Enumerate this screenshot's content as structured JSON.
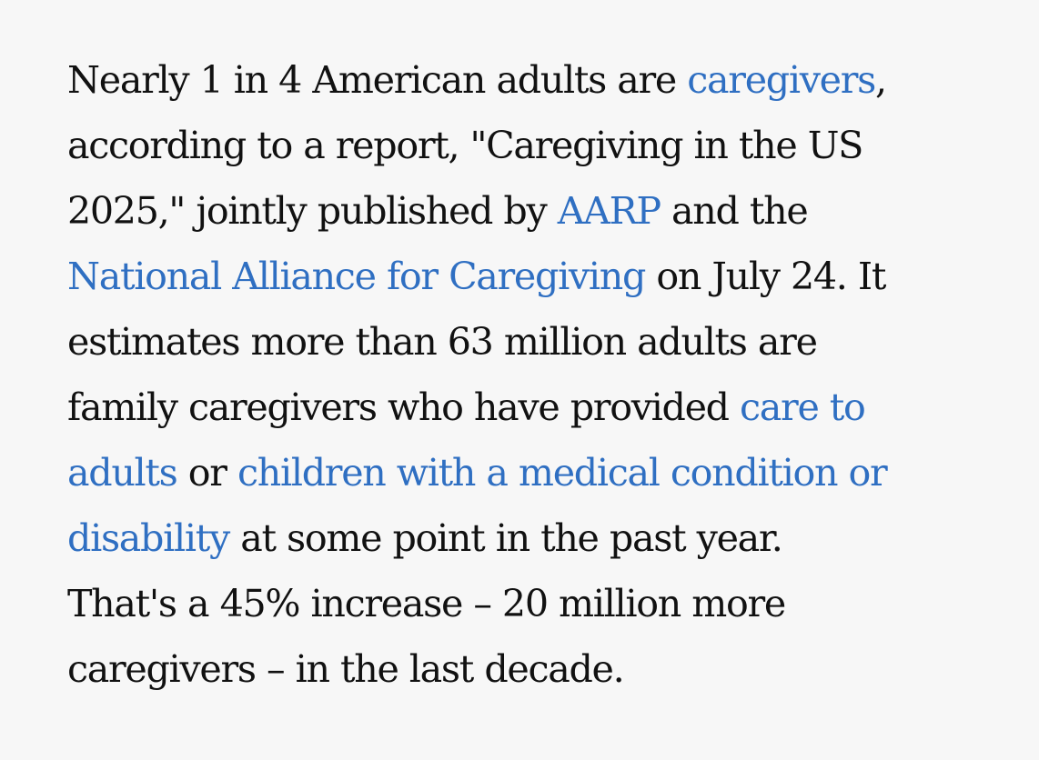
{
  "paragraph": {
    "line1": {
      "text_before": "Nearly 1 in 4 American adults are ",
      "link_caregivers": "caregivers",
      "text_after": ","
    },
    "line2": {
      "text": "according to a report, \"Caregiving in the US"
    },
    "line3": {
      "text_before": "2025,\" jointly published by ",
      "link_aarp": "AARP",
      "text_after": " and the"
    },
    "line4": {
      "link_nac": "National Alliance for Caregiving",
      "text_after": " on July 24. It"
    },
    "line5": {
      "text": "estimates more than 63 million adults are"
    },
    "line6": {
      "text_before": "family caregivers who have provided ",
      "link_care_part1": "care to"
    },
    "line7": {
      "link_care_part2": "adults",
      "text_middle": " or ",
      "link_children_part1": "children with a medical condition or"
    },
    "line8": {
      "link_children_part2": "disability",
      "text_after": " at some point in the past year."
    },
    "line9": {
      "text": "That's a 45% increase – 20 million more"
    },
    "line10": {
      "text": "caregivers – in the last decade."
    }
  },
  "colors": {
    "text": "#111111",
    "link": "#2f6fc2",
    "background": "#f7f7f7"
  }
}
